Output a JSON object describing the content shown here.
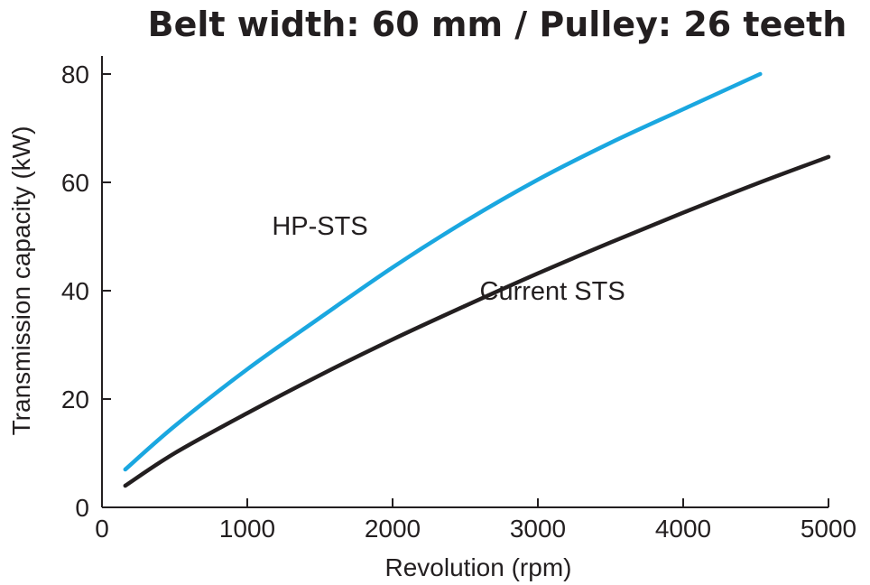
{
  "chart_data": {
    "type": "line",
    "title": "Belt width: 60 mm / Pulley: 26 teeth",
    "xlabel": "Revolution (rpm)",
    "ylabel": "Transmission capacity (kW)",
    "xlim": [
      0,
      5000
    ],
    "ylim": [
      0,
      80
    ],
    "x_ticks": [
      0,
      1000,
      2000,
      3000,
      4000,
      5000
    ],
    "y_ticks": [
      0,
      20,
      40,
      60,
      80
    ],
    "grid": false,
    "legend": "none",
    "series": [
      {
        "name": "HP-STS",
        "color": "#1aa7e0",
        "x": [
          160,
          500,
          1000,
          1500,
          2000,
          2500,
          3000,
          3500,
          4000,
          4530
        ],
        "y": [
          7,
          15,
          25.5,
          35,
          44.3,
          52.8,
          60.5,
          67.3,
          73.5,
          80
        ]
      },
      {
        "name": "Current STS",
        "color": "#231f20",
        "x": [
          160,
          500,
          1000,
          1500,
          2000,
          2500,
          3000,
          3500,
          4000,
          4500,
          5000
        ],
        "y": [
          4,
          10,
          17.4,
          24.4,
          31,
          37.2,
          43.2,
          48.9,
          54.4,
          59.7,
          64.7
        ]
      }
    ],
    "annotations": [
      {
        "text": "HP-STS",
        "series": "HP-STS",
        "x": 1500,
        "y": 52
      },
      {
        "text": "Current STS",
        "series": "Current STS",
        "x": 3100,
        "y": 40
      }
    ]
  }
}
